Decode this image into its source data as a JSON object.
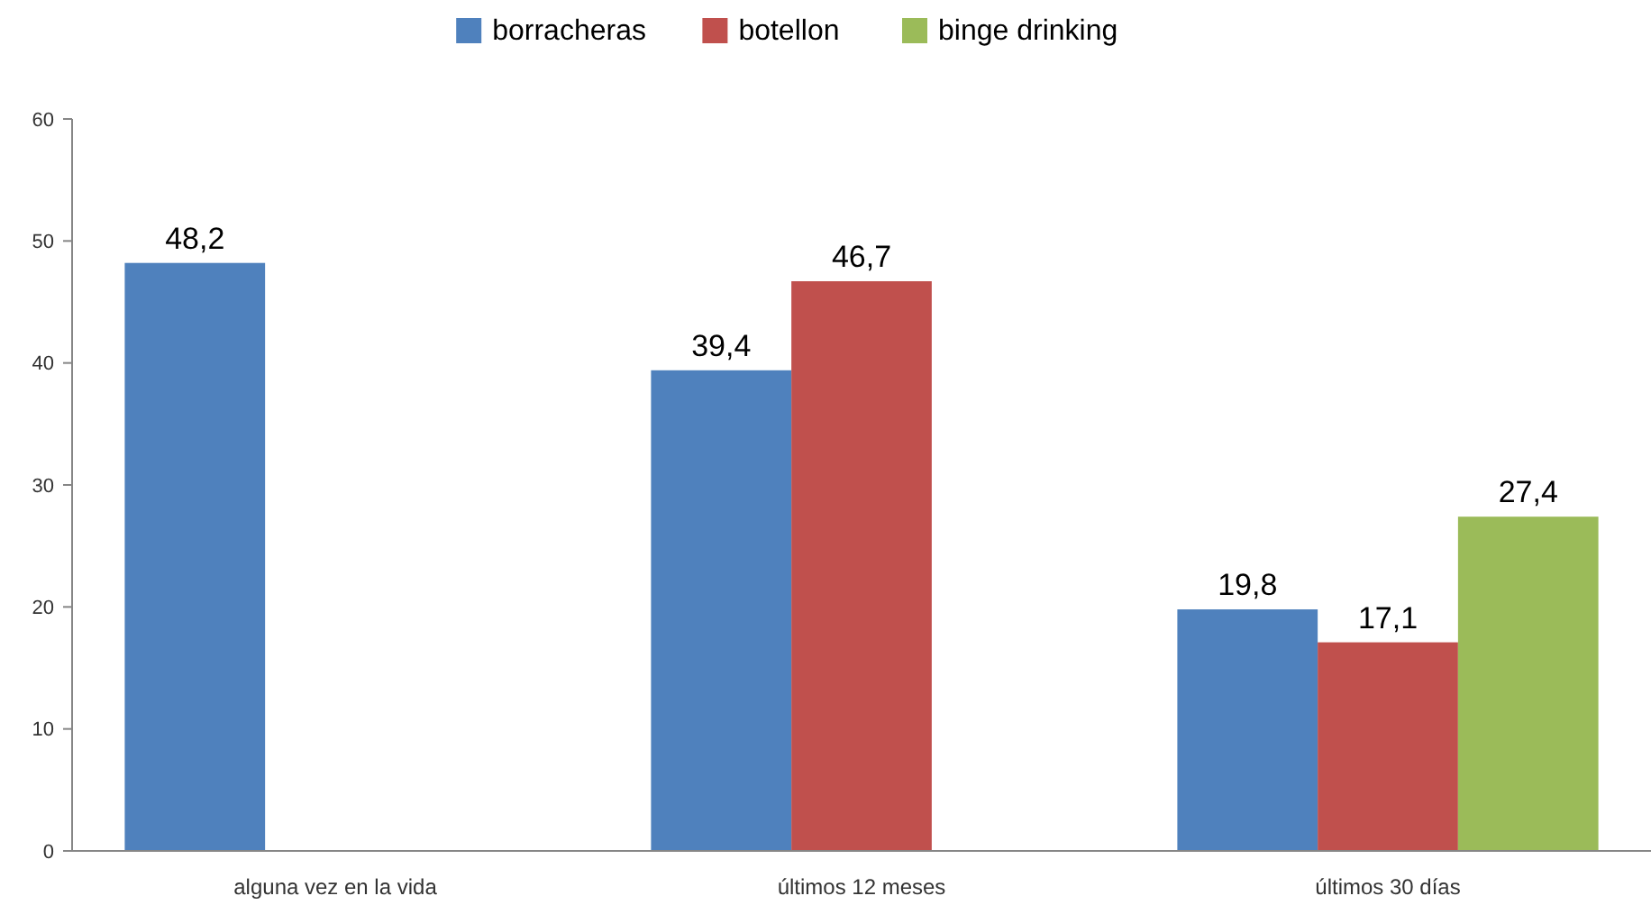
{
  "chart_data": {
    "type": "bar",
    "categories": [
      "alguna vez en la vida",
      "últimos 12 meses",
      "últimos 30 días"
    ],
    "series": [
      {
        "name": "borracheras",
        "color": "#4f81bd",
        "values": [
          48.2,
          39.4,
          19.8
        ],
        "value_labels": [
          "48,2",
          "39,4",
          "19,8"
        ]
      },
      {
        "name": "botellon",
        "color": "#c0504d",
        "values": [
          null,
          46.7,
          17.1
        ],
        "value_labels": [
          null,
          "46,7",
          "17,1"
        ]
      },
      {
        "name": "binge drinking",
        "color": "#9bbb59",
        "values": [
          null,
          null,
          27.4
        ],
        "value_labels": [
          null,
          null,
          "27,4"
        ]
      }
    ],
    "ylim": [
      0,
      60
    ],
    "yticks": [
      0,
      10,
      20,
      30,
      40,
      50,
      60
    ],
    "legend": "top"
  }
}
